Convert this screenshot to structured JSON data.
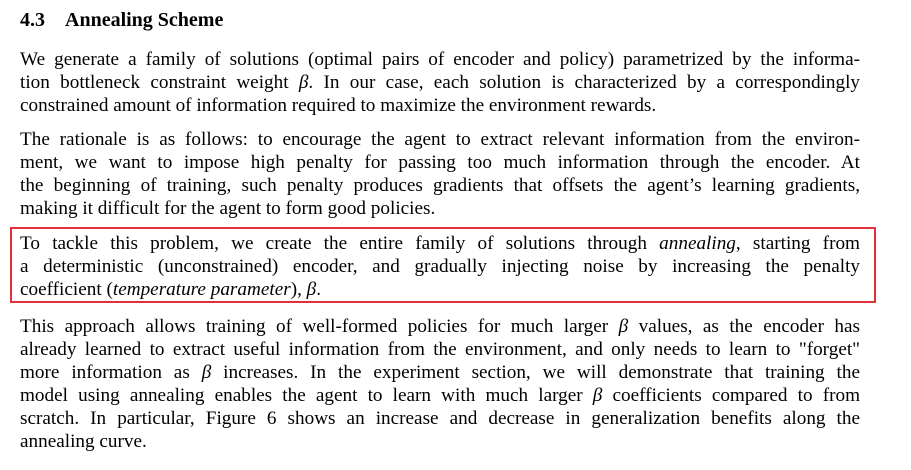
{
  "section": {
    "number": "4.3",
    "title": "Annealing Scheme"
  },
  "symbols": {
    "beta": "β"
  },
  "paragraph1": {
    "l1": "We generate a family of solutions (optimal pairs of encoder and policy) parametrized by the informa-",
    "l2a": "tion bottleneck constraint weight ",
    "l2b": ". In our case, each solution is characterized by a correspondingly",
    "l3": "constrained amount of information required to maximize the environment rewards."
  },
  "paragraph2": {
    "l1": "The rationale is as follows: to encourage the agent to extract relevant information from the environ-",
    "l2": "ment, we want to impose high penalty for passing too much information through the encoder. At",
    "l3": "the beginning of training, such penalty produces gradients that offsets the agent’s learning gradients,",
    "l4": "making it difficult for the agent to form good policies."
  },
  "paragraph3": {
    "l1a": "To tackle this problem, we create the entire family of solutions through ",
    "l1em": "annealing",
    "l1b": ", starting from",
    "l2": "a deterministic (unconstrained) encoder, and gradually injecting noise by increasing the penalty",
    "l3a": "coefficient (",
    "l3em": "temperature parameter",
    "l3b": "), "
  },
  "paragraph4": {
    "l1a": "This approach allows training of well-formed policies for much larger ",
    "l1b": " values, as the encoder has",
    "l2": "already learned to extract useful information from the environment, and only needs to learn to \"forget\"",
    "l3a": "more information as ",
    "l3b": " increases. In the experiment section, we will demonstrate that training the",
    "l4a": "model using annealing enables the agent to learn with much larger ",
    "l4b": " coefficients compared to from",
    "l5": "scratch. In particular, Figure 6 shows an increase and decrease in generalization benefits along the",
    "l6": "annealing curve."
  },
  "colors": {
    "highlight_border": "#e0303a"
  }
}
